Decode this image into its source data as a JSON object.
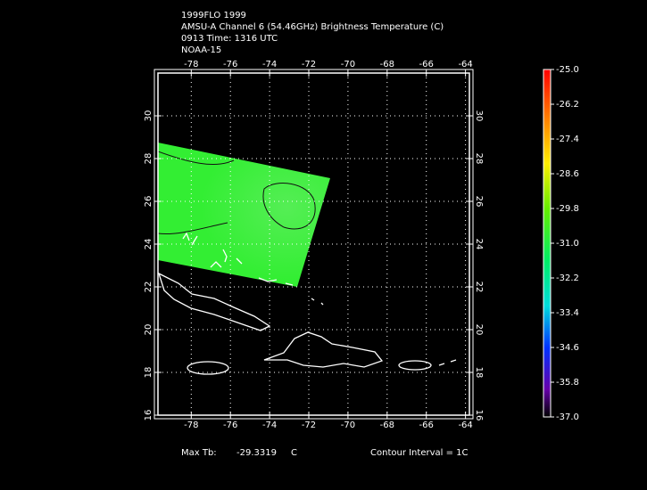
{
  "header": {
    "lines": [
      "1999FLO 1999",
      "AMSU-A Channel 6 (54.46GHz) Brightness Temperature (C)",
      "0913 Time: 1316 UTC",
      "NOAA-15"
    ]
  },
  "map": {
    "xlim": [
      -79.7,
      -63.8
    ],
    "ylim": [
      16,
      32
    ],
    "xticks": [
      -78,
      -76,
      -74,
      -72,
      -70,
      -68,
      -66,
      -64
    ],
    "yticks": [
      16,
      18,
      20,
      22,
      24,
      26,
      28,
      30
    ]
  },
  "colorbar": {
    "lim": [
      -37,
      -25
    ],
    "ticks": [
      {
        "value": -25,
        "label": "-25.0"
      },
      -26.2,
      -27.4,
      -28.6,
      -29.8,
      {
        "value": -31,
        "label": "-31.0"
      },
      -32.2,
      -33.4,
      -34.6,
      -35.8,
      {
        "value": -37,
        "label": "-37.0"
      }
    ]
  },
  "footer": {
    "max_label": "Max Tb:",
    "max_value": -29.3319,
    "max_unit": "C",
    "contour": "Contour Interval = 1C"
  }
}
